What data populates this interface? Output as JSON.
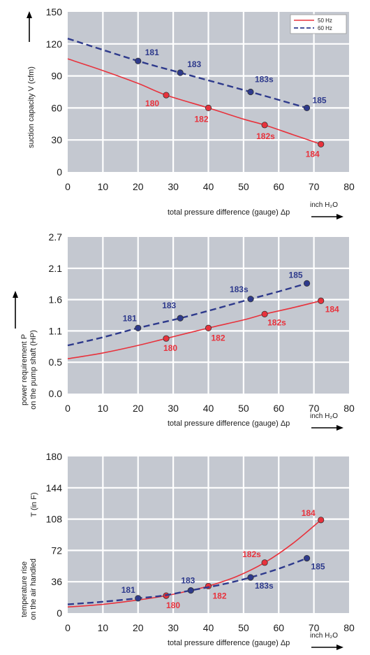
{
  "colors": {
    "plot_bg": "#c4c8d0",
    "grid": "#ffffff",
    "series_50hz": "#e8323c",
    "series_60hz": "#2e3a8c",
    "axis_text": "#1a1a1a"
  },
  "chart_data": [
    {
      "type": "line",
      "ylabel": "suction capacity V (cfm)",
      "xlabel": "total pressure difference (gauge)  Δp",
      "unit_label": "inch H₂O",
      "xlim": [
        0,
        80
      ],
      "ylim": [
        0,
        150
      ],
      "xticks": [
        "0",
        "10",
        "20",
        "30",
        "40",
        "50",
        "60",
        "70",
        "80"
      ],
      "yticks": [
        "0",
        "30",
        "60",
        "90",
        "120",
        "150"
      ],
      "grid": true,
      "legend": {
        "position": "top-right",
        "entries": [
          "50 Hz",
          "60 Hz"
        ]
      },
      "series": [
        {
          "name": "50 Hz",
          "color": "#e8323c",
          "style": "solid",
          "curve": [
            [
              0,
              106
            ],
            [
              10,
              95
            ],
            [
              20,
              83
            ],
            [
              28,
              72
            ],
            [
              40,
              60
            ],
            [
              50,
              49.5
            ],
            [
              56,
              44
            ],
            [
              64,
              35
            ],
            [
              72,
              26
            ]
          ],
          "points": [
            {
              "x": 28,
              "y": 72,
              "label": "180"
            },
            {
              "x": 40,
              "y": 60,
              "label": "182"
            },
            {
              "x": 56,
              "y": 44,
              "label": "182s"
            },
            {
              "x": 72,
              "y": 26,
              "label": "184"
            }
          ]
        },
        {
          "name": "60 Hz",
          "color": "#2e3a8c",
          "style": "dashed",
          "curve": [
            [
              0,
              125
            ],
            [
              20,
              104
            ],
            [
              32,
              93
            ],
            [
              52,
              75
            ],
            [
              68,
              60
            ]
          ],
          "points": [
            {
              "x": 20,
              "y": 104,
              "label": "181"
            },
            {
              "x": 32,
              "y": 93,
              "label": "183"
            },
            {
              "x": 52,
              "y": 75,
              "label": "183s"
            },
            {
              "x": 68,
              "y": 60,
              "label": "185"
            }
          ]
        }
      ]
    },
    {
      "type": "line",
      "ylabel": "power requirement P on the pump shaft (HP)",
      "ylabel_lines": [
        "power requirement P",
        "on the pump shaft (HP)"
      ],
      "xlabel": "total pressure difference (gauge)  Δp",
      "unit_label": "inch H₂O",
      "xlim": [
        0,
        80
      ],
      "ylim": [
        0,
        2.7
      ],
      "xticks": [
        "0",
        "10",
        "20",
        "30",
        "40",
        "50",
        "60",
        "70",
        "80"
      ],
      "yticks": [
        "0.0",
        "0.5",
        "1.1",
        "1.6",
        "2.1",
        "2.7"
      ],
      "grid": true,
      "series": [
        {
          "name": "50 Hz",
          "color": "#e8323c",
          "style": "solid",
          "curve": [
            [
              0,
              0.6
            ],
            [
              10,
              0.7
            ],
            [
              20,
              0.83
            ],
            [
              28,
              0.95
            ],
            [
              40,
              1.13
            ],
            [
              50,
              1.27
            ],
            [
              56,
              1.37
            ],
            [
              64,
              1.48
            ],
            [
              72,
              1.6
            ]
          ],
          "points": [
            {
              "x": 28,
              "y": 0.95,
              "label": "180"
            },
            {
              "x": 40,
              "y": 1.13,
              "label": "182"
            },
            {
              "x": 56,
              "y": 1.37,
              "label": "182s"
            },
            {
              "x": 72,
              "y": 1.6,
              "label": "184"
            }
          ]
        },
        {
          "name": "60 Hz",
          "color": "#2e3a8c",
          "style": "dashed",
          "curve": [
            [
              0,
              0.83
            ],
            [
              10,
              0.97
            ],
            [
              20,
              1.13
            ],
            [
              32,
              1.3
            ],
            [
              42,
              1.46
            ],
            [
              52,
              1.63
            ],
            [
              60,
              1.76
            ],
            [
              68,
              1.9
            ]
          ],
          "points": [
            {
              "x": 20,
              "y": 1.13,
              "label": "181"
            },
            {
              "x": 32,
              "y": 1.3,
              "label": "183"
            },
            {
              "x": 52,
              "y": 1.63,
              "label": "183s"
            },
            {
              "x": 68,
              "y": 1.9,
              "label": "185"
            }
          ]
        }
      ]
    },
    {
      "type": "line",
      "ylabel": "temperature rise on the air handled T (in F)",
      "ylabel_lines": [
        "temperature rise",
        "on the air handled"
      ],
      "ylabel_extra": "T    (in F)",
      "xlabel": "total pressure difference (gauge)  Δp",
      "unit_label": "inch H₂O",
      "xlim": [
        0,
        80
      ],
      "ylim": [
        0,
        180
      ],
      "xticks": [
        "0",
        "10",
        "20",
        "30",
        "40",
        "50",
        "60",
        "70",
        "80"
      ],
      "yticks": [
        "0",
        "36",
        "72",
        "108",
        "144",
        "180"
      ],
      "grid": true,
      "series": [
        {
          "name": "50 Hz",
          "color": "#e8323c",
          "style": "solid",
          "curve": [
            [
              0,
              7
            ],
            [
              10,
              10
            ],
            [
              20,
              15
            ],
            [
              28,
              20
            ],
            [
              35,
              26
            ],
            [
              40,
              31
            ],
            [
              48,
              42
            ],
            [
              56,
              58
            ],
            [
              64,
              80
            ],
            [
              72,
              107
            ]
          ],
          "points": [
            {
              "x": 28,
              "y": 20,
              "label": "180"
            },
            {
              "x": 40,
              "y": 31,
              "label": "182"
            },
            {
              "x": 56,
              "y": 58,
              "label": "182s"
            },
            {
              "x": 72,
              "y": 107,
              "label": "184"
            }
          ]
        },
        {
          "name": "60 Hz",
          "color": "#2e3a8c",
          "style": "dashed",
          "curve": [
            [
              0,
              10
            ],
            [
              10,
              13
            ],
            [
              20,
              17
            ],
            [
              27,
              20
            ],
            [
              35,
              26
            ],
            [
              44,
              33
            ],
            [
              52,
              41
            ],
            [
              60,
              51
            ],
            [
              68,
              63
            ]
          ],
          "points": [
            {
              "x": 20,
              "y": 17,
              "label": "181"
            },
            {
              "x": 35,
              "y": 26,
              "label": "183"
            },
            {
              "x": 52,
              "y": 41,
              "label": "183s"
            },
            {
              "x": 68,
              "y": 63,
              "label": "185"
            }
          ]
        }
      ]
    }
  ]
}
